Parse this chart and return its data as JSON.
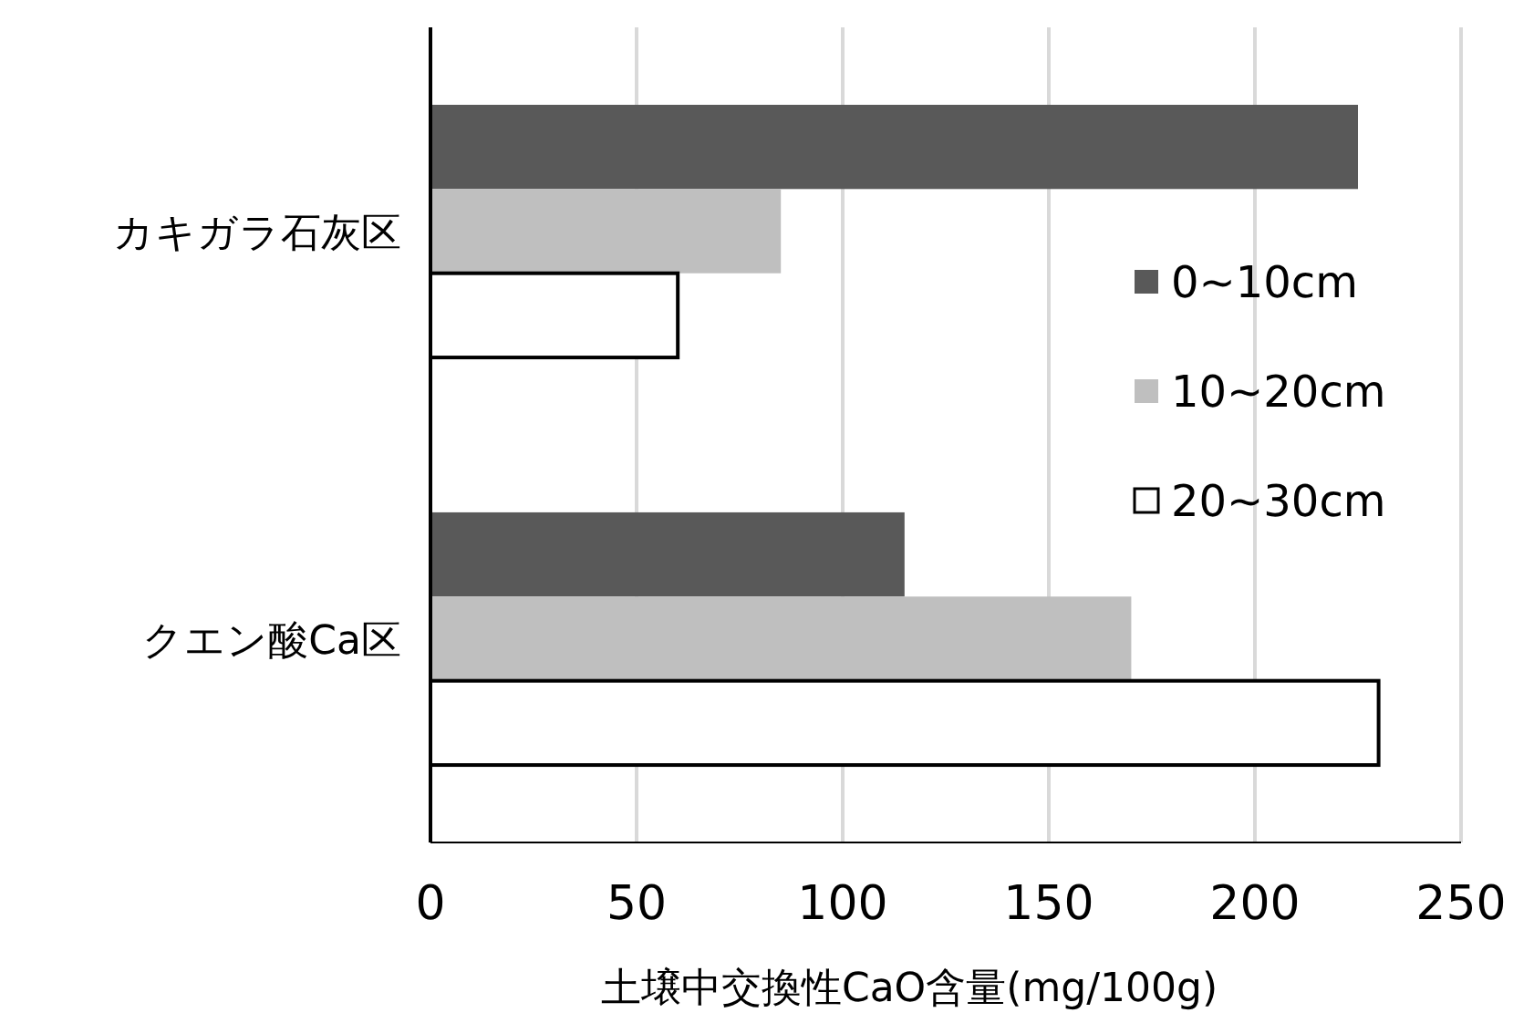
{
  "chart_data": {
    "type": "bar",
    "orientation": "horizontal",
    "xlabel": "土壌中交換性CaO含量(mg/100g)",
    "categories": [
      "カキガラ石灰区",
      "クエン酸Ca区"
    ],
    "series": [
      {
        "name": "0~10cm",
        "color": "#595959",
        "values": [
          225,
          115
        ]
      },
      {
        "name": "10~20cm",
        "color": "#bfbfbf",
        "values": [
          85,
          170
        ]
      },
      {
        "name": "20~30cm",
        "color": "#ffffff",
        "values": [
          60,
          230
        ]
      }
    ],
    "xlim": [
      0,
      250
    ],
    "xticks": [
      0,
      50,
      100,
      150,
      200,
      250
    ],
    "grid": "x",
    "legend": "right"
  }
}
